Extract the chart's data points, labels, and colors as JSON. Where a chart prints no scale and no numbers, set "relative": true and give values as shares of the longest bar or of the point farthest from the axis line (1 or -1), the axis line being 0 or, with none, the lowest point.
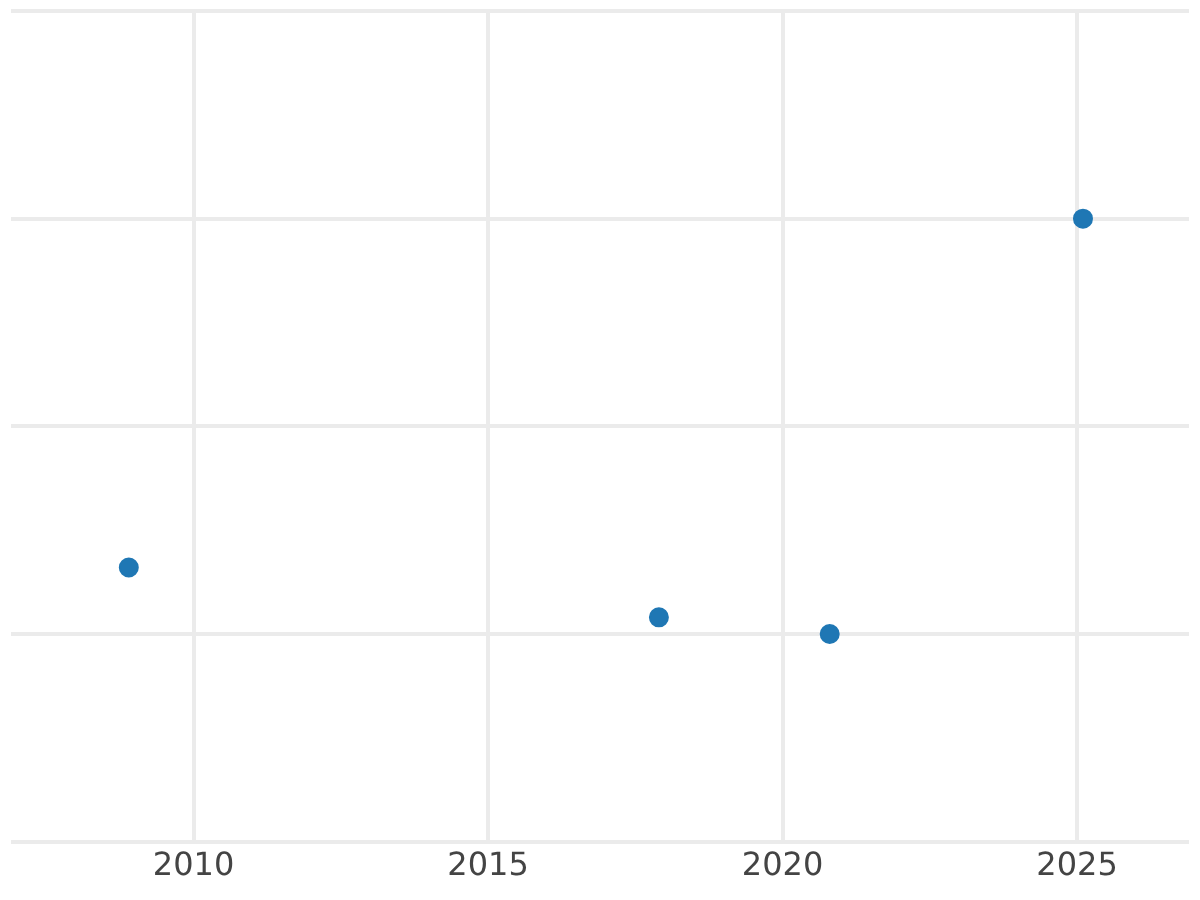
{
  "chart_data": {
    "type": "scatter",
    "relative": true,
    "x": [
      2008.9,
      2017.9,
      2020.8,
      2025.1
    ],
    "values": [
      0.16,
      0.04,
      0,
      1
    ],
    "color": "#1f77b4",
    "xlim": [
      2006.9,
      2026.9
    ],
    "xticks": [
      2010,
      2015,
      2020,
      2025
    ],
    "grid": true,
    "marker": "circle"
  }
}
